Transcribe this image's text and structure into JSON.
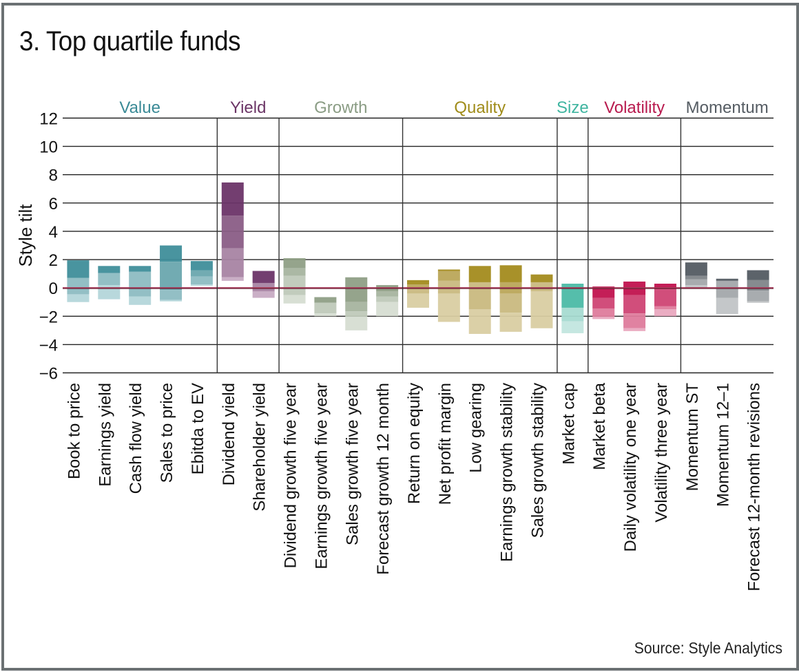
{
  "title": "3. Top quartile funds",
  "source": "Source: Style Analytics",
  "chart_data": {
    "type": "bar",
    "subtype": "floating-stacked-range",
    "title": "3. Top quartile funds",
    "xlabel": "",
    "ylabel": "Style tilt",
    "ylim": [
      -6,
      12
    ],
    "yticks": [
      12,
      10,
      8,
      6,
      4,
      2,
      0,
      -2,
      -4,
      -6
    ],
    "ytick_labels": [
      "12",
      "10",
      "8",
      "6",
      "4",
      "2",
      "0",
      "−2",
      "−4",
      "−6"
    ],
    "grid": true,
    "zero_line_color": "#a53a58",
    "groups": [
      {
        "name": "Value",
        "color": "#3a8a96",
        "shades": [
          "#3f8e9a",
          "#6aa6ae",
          "#8dbcc2",
          "#b4d6da"
        ],
        "categories": [
          {
            "label": "Book to price",
            "bounds": [
              1.95,
              0.7,
              -0.45,
              -1.0
            ]
          },
          {
            "label": "Earnings yield",
            "bounds": [
              1.55,
              1.05,
              0.2,
              -0.8
            ]
          },
          {
            "label": "Cash flow yield",
            "bounds": [
              1.55,
              1.15,
              -0.6,
              -1.2
            ]
          },
          {
            "label": "Sales to price",
            "bounds": [
              3.0,
              1.85,
              -0.15,
              -0.85,
              -0.95
            ]
          },
          {
            "label": "Ebitda to EV",
            "bounds": [
              1.9,
              1.25,
              0.8,
              0.25,
              0.15
            ]
          }
        ]
      },
      {
        "name": "Yield",
        "color": "#6b3566",
        "shades": [
          "#6b3468",
          "#8a5d86",
          "#a884a3",
          "#c7abc3"
        ],
        "categories": [
          {
            "label": "Dividend yield",
            "bounds": [
              7.45,
              5.1,
              2.8,
              0.75,
              0.5
            ]
          },
          {
            "label": "Shareholder yield",
            "bounds": [
              1.2,
              0.35,
              -0.25,
              -0.7
            ]
          }
        ]
      },
      {
        "name": "Growth",
        "color": "#8a9c84",
        "shades": [
          "#8f9f86",
          "#a7b49f",
          "#bfc9b9",
          "#d6ddd2"
        ],
        "categories": [
          {
            "label": "Dividend growth five year",
            "bounds": [
              2.1,
              1.4,
              0.85,
              -0.5,
              -1.1
            ]
          },
          {
            "label": "Earnings growth five year",
            "bounds": [
              -0.65,
              -1.05,
              -1.8,
              -2.0
            ]
          },
          {
            "label": "Sales growth five year",
            "bounds": [
              0.75,
              -1.0,
              -1.65,
              -2.05,
              -3.0
            ]
          },
          {
            "label": "Forecast growth 12 month",
            "bounds": [
              0.2,
              -0.25,
              -0.6,
              -1.0,
              -2.0
            ]
          }
        ]
      },
      {
        "name": "Quality",
        "color": "#a08c1a",
        "shades": [
          "#a38b1e",
          "#baa75a",
          "#c9b97f",
          "#d9cea2"
        ],
        "categories": [
          {
            "label": "Return on equity",
            "bounds": [
              0.55,
              0.25,
              -0.1,
              -0.4,
              -1.4
            ]
          },
          {
            "label": "Net profit margin",
            "bounds": [
              1.3,
              1.2,
              0.5,
              -0.4,
              -2.4
            ]
          },
          {
            "label": "Low gearing",
            "bounds": [
              1.55,
              0.4,
              -1.5,
              -3.25
            ]
          },
          {
            "label": "Earnings growth stability",
            "bounds": [
              1.6,
              0.4,
              -0.4,
              -1.75,
              -3.1
            ]
          },
          {
            "label": "Sales growth stability",
            "bounds": [
              0.95,
              0.4,
              -0.25,
              -2.85
            ]
          }
        ]
      },
      {
        "name": "Size",
        "color": "#3fb5a0",
        "shades": [
          "#4cbaa6",
          "#7ccbbc",
          "#a6dbd1",
          "#c2e6df"
        ],
        "categories": [
          {
            "label": "Market cap",
            "bounds": [
              0.3,
              -1.4,
              -2.35,
              -3.2
            ]
          }
        ]
      },
      {
        "name": "Volatility",
        "color": "#b81a4e",
        "shades": [
          "#c1124e",
          "#cf4474",
          "#de7b9c",
          "#e9a8bf"
        ],
        "categories": [
          {
            "label": "Market beta",
            "bounds": [
              0.1,
              -0.7,
              -1.45,
              -2.05,
              -2.2
            ]
          },
          {
            "label": "Daily volatility one year",
            "bounds": [
              0.45,
              -0.5,
              -1.8,
              -2.85,
              -3.05
            ]
          },
          {
            "label": "Volatility three year",
            "bounds": [
              0.3,
              -0.1,
              -1.3,
              -1.5,
              -2.0
            ]
          }
        ]
      },
      {
        "name": "Momentum",
        "color": "#555c63",
        "shades": [
          "#535b62",
          "#7f8589",
          "#a3a8ab",
          "#c1c4c6"
        ],
        "categories": [
          {
            "label": "Momentum ST",
            "bounds": [
              1.8,
              0.85,
              0.6,
              0.2,
              -0.05
            ]
          },
          {
            "label": "Momentum 12–1",
            "bounds": [
              0.65,
              0.5,
              -0.7,
              -1.85
            ]
          },
          {
            "label": "Forecast 12-month revisions",
            "bounds": [
              1.25,
              0.55,
              -0.2,
              -0.95,
              -1.05
            ]
          }
        ]
      }
    ]
  }
}
